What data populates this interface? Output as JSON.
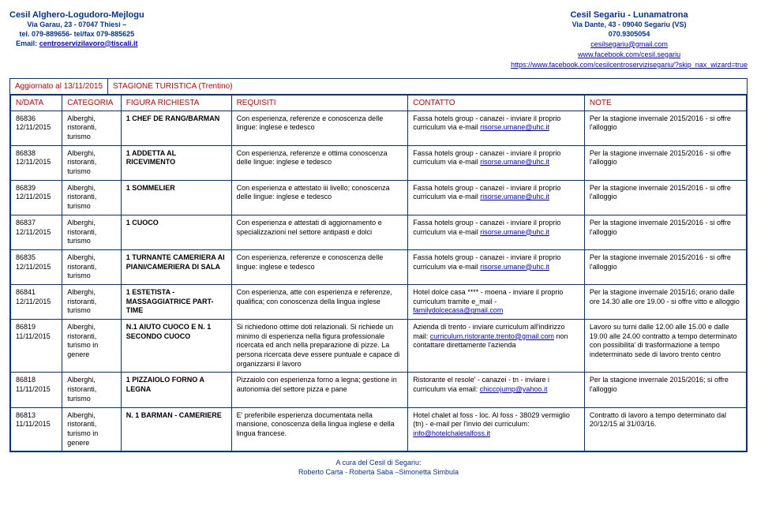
{
  "header_left": {
    "title": "Cesil Alghero-Logudoro-Mejlogu",
    "lines": [
      "Via Garau, 23 - 07047 Thiesi –",
      "tel. 079-889656- tel/fax 079-885625"
    ],
    "email_label": "Email: ",
    "email": "centroservizilavoro@tiscali.it"
  },
  "header_right": {
    "title": "Cesil Segariu - Lunamatrona",
    "lines": [
      "Via Dante, 43 - 09040  Segariu (VS)",
      "070.9305054"
    ],
    "links": [
      "cesilsegariu@gmail.com",
      "www.facebook.com/cesil.segariu",
      "https://www.facebook.com/cesilcentroservizisegariu/?skip_nax_wizard=true"
    ]
  },
  "update": {
    "left": "Aggiornato al 13/11/2015",
    "right": "STAGIONE TURISTICA (Trentino)"
  },
  "columns": [
    "N/DATA",
    "CATEGORIA",
    "FIGURA RICHIESTA",
    "REQUISITI",
    "CONTATTO",
    "NOTE"
  ],
  "rows": [
    {
      "n": "86836",
      "date": "12/11/2015",
      "cat": "Alberghi, ristoranti, turismo",
      "fig": "1 CHEF DE RANG/BARMAN",
      "req": "Con esperienza, referenze e conoscenza delle lingue: inglese e tedesco",
      "con_text": "Fassa hotels group - canazei - inviare il proprio curriculum via e-mail",
      "con_link": "risorse.umane@uhc.it",
      "note": "Per la stagione invernale 2015/2016 - si offre l'alloggio"
    },
    {
      "n": "86838",
      "date": "12/11/2015",
      "cat": "Alberghi, ristoranti, turismo",
      "fig": "1 ADDETTA AL RICEVIMENTO",
      "req": "Con esperienza, referenze e ottima conoscenza delle lingue: inglese e tedesco",
      "con_text": "Fassa hotels group - canazei - inviare il proprio curriculum via e-mail",
      "con_link": "risorse.umane@uhc.it",
      "note": "Per la stagione invernale 2015/2016 - si offre l'alloggio"
    },
    {
      "n": "86839",
      "date": "12/11/2015",
      "cat": "Alberghi, ristoranti, turismo",
      "fig": "1 SOMMELIER",
      "req": "Con esperienza e attestato iii livello; conoscenza delle lingue: inglese e tedesco",
      "con_text": "Fassa hotels group - canazei - inviare il proprio curriculum via e-mail",
      "con_link": "risorse.umane@uhc.it",
      "note": "Per la stagione invernale 2015/2016 - si offre l'alloggio"
    },
    {
      "n": "86837",
      "date": "12/11/2015",
      "cat": "Alberghi, ristoranti, turismo",
      "fig": "1 CUOCO",
      "req": "Con esperienza e attestati di aggiornamento e specializzazioni nel settore antipasti e dolci",
      "con_text": "Fassa hotels group - canazei - inviare il proprio curriculum via e-mail",
      "con_link": "risorse.umane@uhc.it",
      "note": "Per la stagione invernale 2015/2016 - si offre l'alloggio"
    },
    {
      "n": "86835",
      "date": "12/11/2015",
      "cat": "Alberghi, ristoranti, turismo",
      "fig": "1 TURNANTE CAMERIERA AI PIANI/CAMERIERA DI SALA",
      "req": "Con esperienza, referenze e conoscenza delle lingue: inglese e tedesco",
      "con_text": "Fassa hotels group - canazei - inviare il proprio curriculum via e-mail",
      "con_link": "risorse.umane@uhc.it",
      "note": "Per la stagione invernale 2015/2016 - si offre l'alloggio"
    },
    {
      "n": "86841",
      "date": "12/11/2015",
      "cat": "Alberghi, ristoranti, turismo",
      "fig": "1 ESTETISTA - MASSAGGIATRICE PART-TIME",
      "req": "Con esperienza, atte con esperienza e referenze, qualifica; con conoscenza della lingua inglese",
      "con_text": "Hotel dolce casa **** - moena - inviare il proprio curriculum tramite e_mail -",
      "con_link": "familydolcecasa@gmail.com",
      "note": "Per la stagione invernale 2015/16; orario dalle ore 14.30 alle ore 19.00 - si offre vitto e alloggio"
    },
    {
      "n": "86819",
      "date": "11/11/2015",
      "cat": "Alberghi, ristoranti, turismo in genere",
      "fig": "N.1 AIUTO CUOCO E N. 1 SECONDO CUOCO",
      "req": "Si richiedono ottime doti relazionali. Si richiede un minimo di esperienza nella figura professionale ricercata ed anch nella preparazione di pizze. La persona ricercata deve essere puntuale e capace di organizzarsi il lavoro",
      "con_text": "Azienda di trento - inviare curriculum all'indirizzo mail:",
      "con_link": "curriculum.ristorante.trento@gmail.com",
      "con_tail": " non contattare direttamente l'azienda",
      "note": "Lavoro su turni dalle 12.00 alle 15.00 e dalle 19.00 alle 24.00 contratto a tempo determinato con possibilita' di trasformazione a tempo indeterminato sede di lavoro trento centro"
    },
    {
      "n": "86818",
      "date": "11/11/2015",
      "cat": "Alberghi, ristoranti, turismo",
      "fig": "1 PIZZAIOLO FORNO A LEGNA",
      "req": "Pizzaiolo con esperienza forno a legna; gestione in autonomia del settore pizza e pane",
      "con_text": "Ristorante el resole' - canazei - tn - inviare i curriculum via email:",
      "con_link": "chiccojump@yahoo.it",
      "note": "Per la stagione invernale 2015/2016; si offre l'alloggio"
    },
    {
      "n": "86813",
      "date": "11/11/2015",
      "cat": "Alberghi, ristoranti, turismo in genere",
      "fig": "N. 1 BARMAN - CAMERIERE",
      "req": "E' preferibile esperienza documentata nella mansione, conoscenza della lingua inglese e della lingua francese.",
      "con_text": "Hotel chalet al foss - loc. Al foss - 38029 vermiglio (tn) - e-mail per l'invio dei curriculum:",
      "con_link": "info@hotelchaletalfoss.it",
      "note": "Contratto di lavoro a tempo determinato dal 20/12/15 al 31/03/16."
    }
  ],
  "footer": {
    "line1": "A cura del Cesil di Segariu:",
    "line2": "Roberto Carta - Roberta Saba –Simonetta Simbula"
  }
}
